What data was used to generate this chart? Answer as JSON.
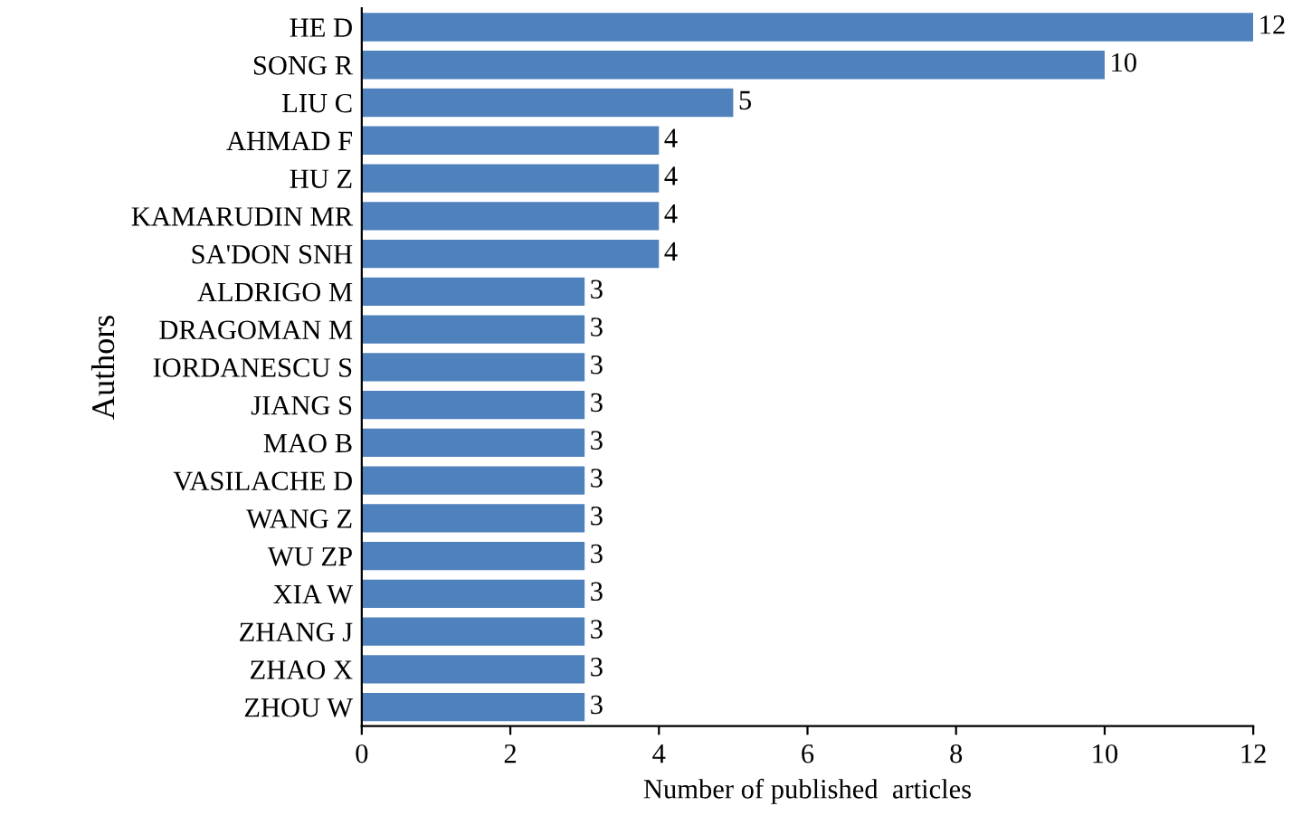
{
  "chart_data": {
    "type": "bar",
    "orientation": "horizontal",
    "ylabel": "Authors",
    "xlabel": "Number of published  articles",
    "categories": [
      "HE D",
      "SONG R",
      "LIU C",
      "AHMAD F",
      "HU Z",
      "KAMARUDIN MR",
      "SA'DON SNH",
      "ALDRIGO M",
      "DRAGOMAN M",
      "IORDANESCU S",
      "JIANG S",
      "MAO B",
      "VASILACHE D",
      "WANG Z",
      "WU ZP",
      "XIA W",
      "ZHANG J",
      "ZHAO X",
      "ZHOU W"
    ],
    "values": [
      12,
      10,
      5,
      4,
      4,
      4,
      4,
      3,
      3,
      3,
      3,
      3,
      3,
      3,
      3,
      3,
      3,
      3,
      3
    ],
    "color": "#4f81bd",
    "xlim": [
      0,
      12
    ],
    "xticks": [
      0,
      2,
      4,
      6,
      8,
      10,
      12
    ],
    "data_labels": true,
    "grid": false,
    "legend": false
  }
}
